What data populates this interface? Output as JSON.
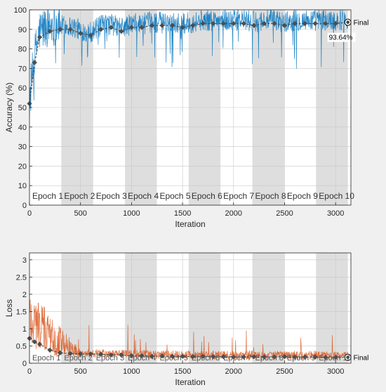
{
  "chart_data": [
    {
      "type": "line",
      "xlabel": "Iteration",
      "ylabel": "Accuracy (%)",
      "xlim": [
        0,
        3150
      ],
      "ylim": [
        0,
        100
      ],
      "xticks": [
        0,
        500,
        1000,
        1500,
        2000,
        2500,
        3000
      ],
      "yticks": [
        0,
        10,
        20,
        30,
        40,
        50,
        60,
        70,
        80,
        90,
        100
      ],
      "grid": true,
      "epoch_labels": [
        "Epoch 1",
        "Epoch 2",
        "Epoch 3",
        "Epoch 4",
        "Epoch 5",
        "Epoch 6",
        "Epoch 7",
        "Epoch 8",
        "Epoch 9",
        "Epoch 10"
      ],
      "epoch_boundaries": [
        0,
        312,
        624,
        936,
        1248,
        1560,
        1872,
        2184,
        2496,
        2808,
        3120
      ],
      "final_label": "Final",
      "final_value_label": "93.64%",
      "final_point": {
        "x": 3120,
        "y": 93.64
      },
      "colors": {
        "raw": "#0072bd",
        "smoothed": "#4d4d4d",
        "shade": "#dedede"
      },
      "series": [
        {
          "values": [
            [
              0,
              52
            ],
            [
              50,
              73
            ],
            [
              100,
              86
            ],
            [
              200,
              89
            ],
            [
              300,
              90
            ],
            [
              400,
              90
            ],
            [
              500,
              88
            ],
            [
              600,
              87
            ],
            [
              700,
              90
            ],
            [
              800,
              91
            ],
            [
              900,
              89
            ],
            [
              1000,
              91
            ],
            [
              1100,
              91
            ],
            [
              1200,
              92
            ],
            [
              1300,
              92
            ],
            [
              1400,
              92
            ],
            [
              1500,
              91
            ],
            [
              1600,
              92
            ],
            [
              1700,
              93
            ],
            [
              1800,
              93
            ],
            [
              1900,
              93
            ],
            [
              2000,
              93
            ],
            [
              2100,
              93
            ],
            [
              2200,
              92
            ],
            [
              2300,
              93
            ],
            [
              2400,
              93
            ],
            [
              2500,
              92
            ],
            [
              2600,
              93
            ],
            [
              2700,
              93
            ],
            [
              2800,
              93
            ],
            [
              2900,
              93
            ],
            [
              3000,
              93
            ],
            [
              3120,
              93.64
            ]
          ]
        }
      ]
    },
    {
      "type": "line",
      "xlabel": "Iteration",
      "ylabel": "Loss",
      "xlim": [
        0,
        3150
      ],
      "ylim": [
        0,
        3.2
      ],
      "xticks": [
        0,
        500,
        1000,
        1500,
        2000,
        2500,
        3000
      ],
      "yticks": [
        0,
        0.5,
        1,
        1.5,
        2,
        2.5,
        3
      ],
      "ytick_labels": [
        "0",
        "0.5",
        "1",
        "1.5",
        "2",
        "2.5",
        "3"
      ],
      "grid": true,
      "epoch_labels": [
        "Epoch 1",
        "Epoch 2",
        "Epoch 3",
        "Epoch 4",
        "Epoch 5",
        "Epoch 6",
        "Epoch 7",
        "Epoch 8",
        "Epoch 9",
        "Epoch 10"
      ],
      "epoch_boundaries": [
        0,
        312,
        624,
        936,
        1248,
        1560,
        1872,
        2184,
        2496,
        2808,
        3120
      ],
      "final_label": "Final",
      "final_point": {
        "x": 3120,
        "y": 0.17
      },
      "colors": {
        "raw": "#d95319",
        "smoothed": "#4d4d4d",
        "shade": "#dedede"
      },
      "series": [
        {
          "values": [
            [
              0,
              0.72
            ],
            [
              50,
              0.62
            ],
            [
              100,
              0.55
            ],
            [
              200,
              0.38
            ],
            [
              300,
              0.3
            ],
            [
              400,
              0.28
            ],
            [
              500,
              0.27
            ],
            [
              600,
              0.27
            ],
            [
              700,
              0.26
            ],
            [
              800,
              0.24
            ],
            [
              900,
              0.24
            ],
            [
              1000,
              0.22
            ],
            [
              1100,
              0.22
            ],
            [
              1200,
              0.2
            ],
            [
              1300,
              0.21
            ],
            [
              1400,
              0.2
            ],
            [
              1500,
              0.2
            ],
            [
              1600,
              0.19
            ],
            [
              1700,
              0.2
            ],
            [
              1800,
              0.19
            ],
            [
              1900,
              0.19
            ],
            [
              2000,
              0.18
            ],
            [
              2100,
              0.18
            ],
            [
              2200,
              0.19
            ],
            [
              2300,
              0.18
            ],
            [
              2400,
              0.18
            ],
            [
              2500,
              0.19
            ],
            [
              2600,
              0.18
            ],
            [
              2700,
              0.18
            ],
            [
              2800,
              0.18
            ],
            [
              2900,
              0.17
            ],
            [
              3000,
              0.17
            ],
            [
              3120,
              0.17
            ]
          ]
        }
      ]
    }
  ]
}
